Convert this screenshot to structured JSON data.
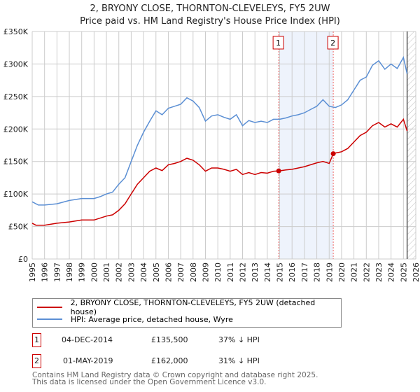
{
  "chart_data": {
    "type": "line",
    "title": "2, BRYONY CLOSE, THORNTON-CLEVELEYS, FY5 2UW",
    "subtitle": "Price paid vs. HM Land Registry's House Price Index (HPI)",
    "xlim": [
      1995,
      2026
    ],
    "ylim": [
      0,
      350000
    ],
    "yticks": [
      {
        "v": 0,
        "label": "£0"
      },
      {
        "v": 50000,
        "label": "£50K"
      },
      {
        "v": 100000,
        "label": "£100K"
      },
      {
        "v": 150000,
        "label": "£150K"
      },
      {
        "v": 200000,
        "label": "£200K"
      },
      {
        "v": 250000,
        "label": "£250K"
      },
      {
        "v": 300000,
        "label": "£300K"
      },
      {
        "v": 350000,
        "label": "£350K"
      }
    ],
    "xticks": [
      "1995",
      "1996",
      "1997",
      "1998",
      "1999",
      "2000",
      "2001",
      "2002",
      "2003",
      "2004",
      "2005",
      "2006",
      "2007",
      "2008",
      "2009",
      "2010",
      "2011",
      "2012",
      "2013",
      "2014",
      "2015",
      "2016",
      "2017",
      "2018",
      "2019",
      "2020",
      "2021",
      "2022",
      "2023",
      "2024",
      "2025",
      "2026"
    ],
    "grid": true,
    "series": [
      {
        "name": "2, BRYONY CLOSE, THORNTON-CLEVELEYS, FY5 2UW (detached house)",
        "color": "#cc0000",
        "x": [
          1995,
          1995.3,
          1996,
          1997,
          1998,
          1999,
          2000,
          2001,
          2001.5,
          2002,
          2002.5,
          2003,
          2003.5,
          2004,
          2004.5,
          2005,
          2005.5,
          2006,
          2006.5,
          2007,
          2007.5,
          2008,
          2008.5,
          2009,
          2009.5,
          2010,
          2010.5,
          2011,
          2011.5,
          2012,
          2012.5,
          2013,
          2013.5,
          2014,
          2014.5,
          2014.92,
          2015.5,
          2016,
          2016.5,
          2017,
          2017.5,
          2018,
          2018.5,
          2019,
          2019.33,
          2019.5,
          2020,
          2020.5,
          2021,
          2021.5,
          2022,
          2022.5,
          2023,
          2023.5,
          2024,
          2024.5,
          2025,
          2025.3
        ],
        "y": [
          55000,
          52000,
          52000,
          55000,
          57000,
          60000,
          60000,
          66000,
          68000,
          75000,
          85000,
          100000,
          115000,
          125000,
          135000,
          140000,
          136000,
          145000,
          147000,
          150000,
          155000,
          152000,
          145000,
          135000,
          140000,
          140000,
          138000,
          135000,
          138000,
          130000,
          133000,
          130000,
          133000,
          132000,
          135000,
          135500,
          137000,
          138000,
          140000,
          142000,
          145000,
          148000,
          150000,
          147000,
          162000,
          163000,
          165000,
          170000,
          180000,
          190000,
          195000,
          205000,
          210000,
          203000,
          208000,
          203000,
          215000,
          197000
        ]
      },
      {
        "name": "HPI: Average price, detached house, Wyre",
        "color": "#5b8fd4",
        "x": [
          1995,
          1995.5,
          1996,
          1997,
          1998,
          1999,
          2000,
          2000.5,
          2001,
          2001.5,
          2002,
          2002.5,
          2003,
          2003.5,
          2004,
          2004.5,
          2005,
          2005.5,
          2006,
          2006.5,
          2007,
          2007.5,
          2008,
          2008.5,
          2009,
          2009.5,
          2010,
          2010.5,
          2011,
          2011.5,
          2012,
          2012.5,
          2013,
          2013.5,
          2014,
          2014.5,
          2015,
          2015.5,
          2016,
          2016.5,
          2017,
          2017.5,
          2018,
          2018.5,
          2019,
          2019.5,
          2020,
          2020.5,
          2021,
          2021.5,
          2022,
          2022.5,
          2023,
          2023.5,
          2024,
          2024.5,
          2025,
          2025.3
        ],
        "y": [
          88000,
          83000,
          83000,
          85000,
          90000,
          93000,
          93000,
          96000,
          100000,
          103000,
          115000,
          125000,
          150000,
          175000,
          195000,
          212000,
          228000,
          222000,
          232000,
          235000,
          238000,
          248000,
          243000,
          233000,
          212000,
          220000,
          222000,
          218000,
          215000,
          222000,
          205000,
          213000,
          210000,
          212000,
          210000,
          215000,
          215000,
          217000,
          220000,
          222000,
          225000,
          230000,
          235000,
          245000,
          235000,
          233000,
          237000,
          245000,
          260000,
          275000,
          280000,
          298000,
          305000,
          292000,
          300000,
          293000,
          310000,
          285000
        ]
      }
    ],
    "sales": [
      {
        "label": "1",
        "x": 2014.92,
        "y": 135500,
        "date": "04-DEC-2014",
        "price": "£135,500",
        "hpi": "37% ↓ HPI"
      },
      {
        "label": "2",
        "x": 2019.33,
        "y": 162000,
        "date": "01-MAY-2019",
        "price": "£162,000",
        "hpi": "31% ↓ HPI"
      }
    ],
    "hatch_from": 2025.3,
    "legend_position": "bottom"
  },
  "footer": {
    "line1": "Contains HM Land Registry data © Crown copyright and database right 2025.",
    "line2": "This data is licensed under the Open Government Licence v3.0."
  }
}
